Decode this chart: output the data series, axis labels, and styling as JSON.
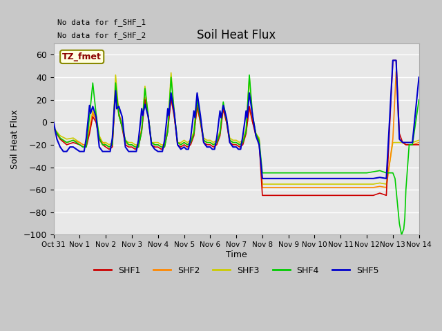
{
  "title": "Soil Heat Flux",
  "ylabel": "Soil Heat Flux",
  "xlabel": "Time",
  "ylim": [
    -100,
    70
  ],
  "yticks": [
    -100,
    -80,
    -60,
    -40,
    -20,
    0,
    20,
    40,
    60
  ],
  "annotation_text1": "No data for f_SHF_1",
  "annotation_text2": "No data for f_SHF_2",
  "legend_box_text": "TZ_fmet",
  "colors": {
    "SHF1": "#cc0000",
    "SHF2": "#ff8800",
    "SHF3": "#cccc00",
    "SHF4": "#00cc00",
    "SHF5": "#0000cc"
  },
  "xtick_labels": [
    "Oct 31",
    "Nov 1",
    "Nov 2",
    "Nov 3",
    "Nov 4",
    "Nov 5",
    "Nov 6",
    "Nov 7",
    "Nov 8",
    "Nov 9",
    "Nov 10",
    "Nov 11",
    "Nov 12",
    "Nov 13",
    "Nov 14"
  ]
}
